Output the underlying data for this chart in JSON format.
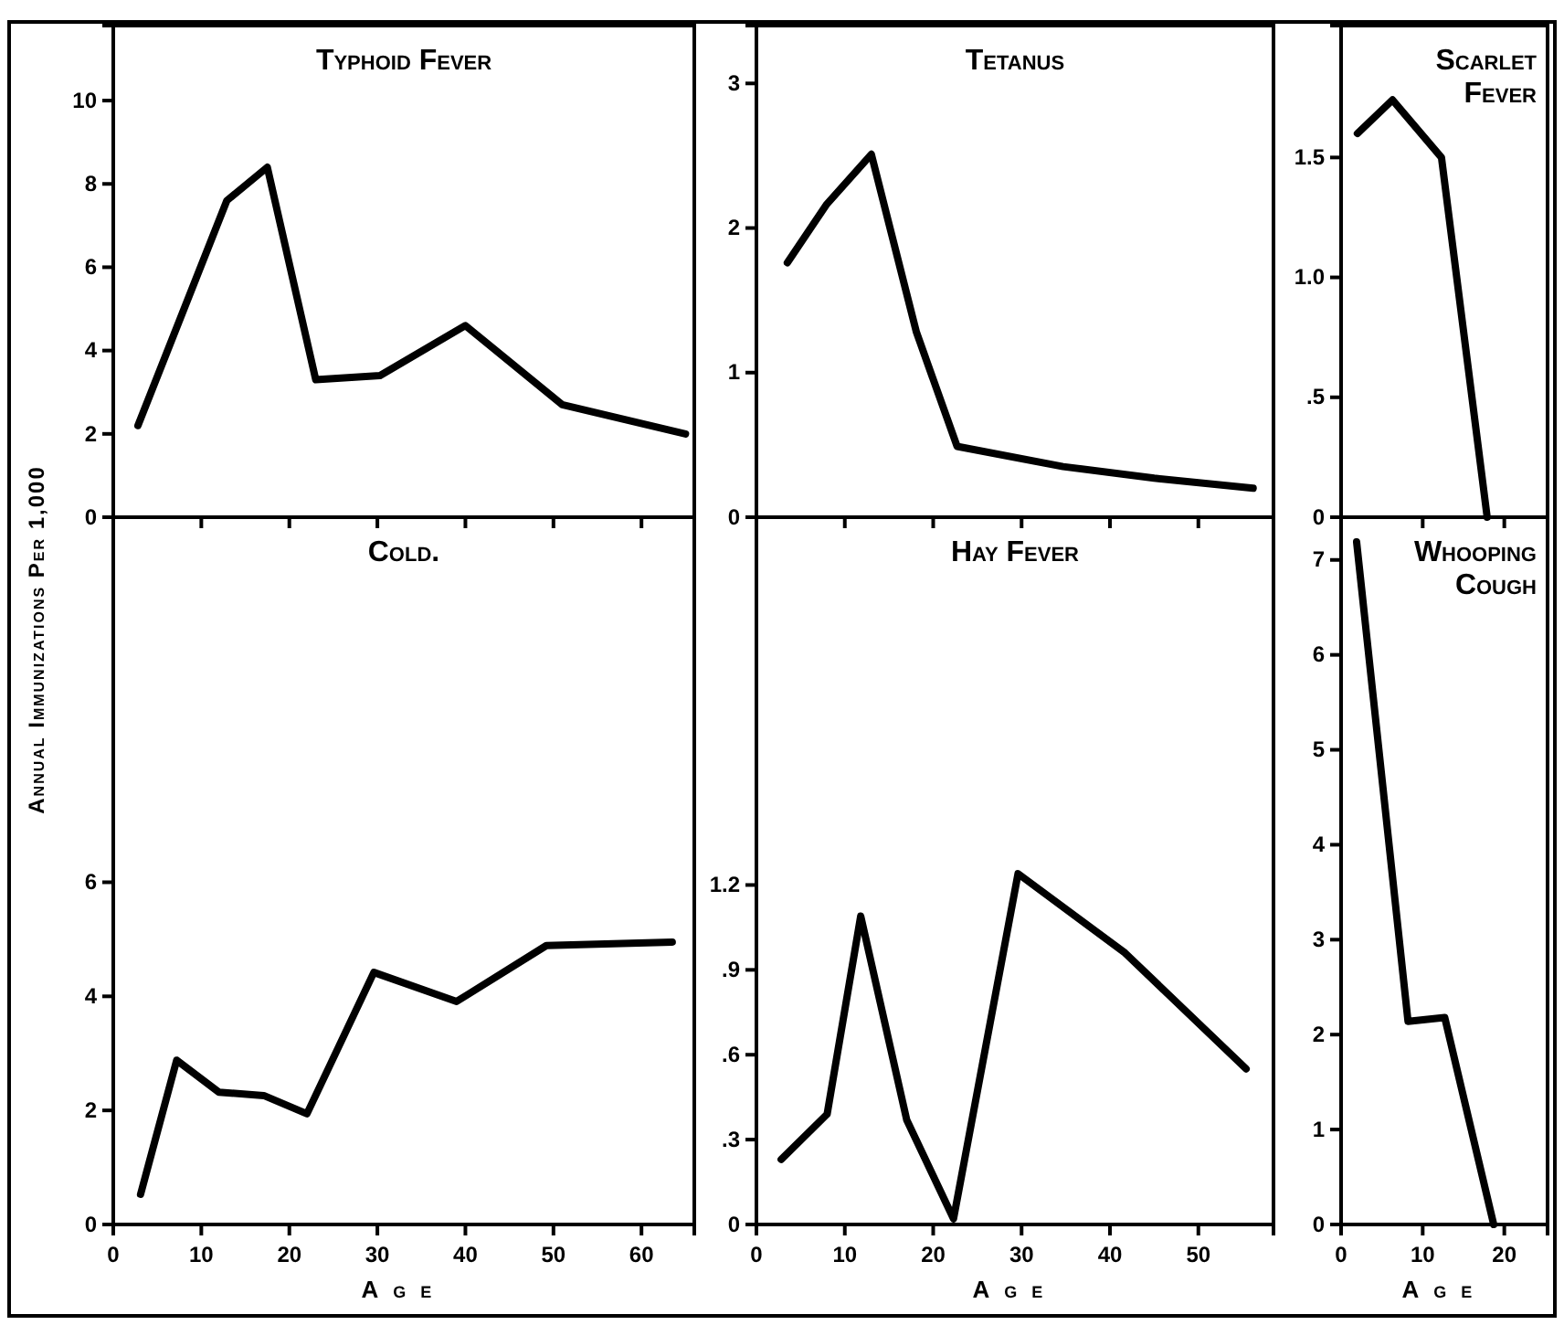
{
  "chart_data": [
    {
      "type": "line",
      "title": "Typhoid Fever",
      "x": [
        2.8,
        12.9,
        17.5,
        23,
        30.3,
        40,
        51,
        65
      ],
      "xlim": [
        0,
        66
      ],
      "xticks": [
        {
          "value": 0,
          "label": null
        },
        {
          "value": 10,
          "label": null
        },
        {
          "value": 20,
          "label": null
        },
        {
          "value": 30,
          "label": null
        },
        {
          "value": 40,
          "label": null
        },
        {
          "value": 50,
          "label": null
        },
        {
          "value": 60,
          "label": null
        }
      ],
      "ylim": [
        0,
        11.8
      ],
      "yticks": [
        0,
        2,
        4,
        6,
        8,
        10
      ],
      "tick_labels": "y",
      "series": [
        {
          "color": "#000000",
          "values": [
            2.2,
            7.6,
            8.4,
            3.3,
            3.4,
            4.6,
            2.7,
            2.0
          ]
        }
      ]
    },
    {
      "type": "line",
      "title": "Tetanus",
      "x": [
        3.5,
        7.9,
        13,
        18.1,
        22.7,
        34.7,
        45,
        56.2
      ],
      "xlim": [
        0,
        58.5
      ],
      "xticks": [
        {
          "value": 0,
          "label": null
        },
        {
          "value": 10,
          "label": null
        },
        {
          "value": 20,
          "label": null
        },
        {
          "value": 30,
          "label": null
        },
        {
          "value": 40,
          "label": null
        },
        {
          "value": 50,
          "label": null
        }
      ],
      "ylim": [
        0,
        3.4
      ],
      "yticks": [
        0,
        1,
        2,
        3
      ],
      "tick_labels": "y",
      "series": [
        {
          "color": "#000000",
          "values": [
            1.76,
            2.16,
            2.51,
            1.28,
            0.49,
            0.35,
            0.27,
            0.2
          ]
        }
      ]
    },
    {
      "type": "line",
      "title": "Scarlet Fever",
      "x": [
        2,
        6.3,
        12.3,
        17.9
      ],
      "xlim": [
        0,
        25.3
      ],
      "xticks": [
        {
          "value": 0,
          "label": null
        },
        {
          "value": 10,
          "label": null
        },
        {
          "value": 20,
          "label": null
        }
      ],
      "ylim": [
        0,
        2.05
      ],
      "yticks": [
        0,
        {
          "value": 0.5,
          "label": ".5"
        },
        {
          "value": 1,
          "label": "1.0"
        },
        1.5
      ],
      "tick_labels": "y",
      "series": [
        {
          "color": "#000000",
          "values": [
            1.6,
            1.74,
            1.5,
            0
          ]
        }
      ]
    },
    {
      "type": "line",
      "title": "Cold.",
      "xlabel": "Age",
      "ylabel": "Annual Immunizations Per 1,000",
      "x": [
        3.1,
        7.2,
        12,
        17.1,
        22,
        29.6,
        39,
        49.2,
        63.5
      ],
      "xlim": [
        0,
        66
      ],
      "xticks": [
        0,
        10,
        20,
        30,
        40,
        50,
        60
      ],
      "ylim": [
        0,
        12.4
      ],
      "yticks": [
        0,
        2,
        4,
        6
      ],
      "series": [
        {
          "color": "#000000",
          "values": [
            0.53,
            2.88,
            2.32,
            2.26,
            1.94,
            4.42,
            3.91,
            4.89,
            4.95
          ]
        }
      ]
    },
    {
      "type": "line",
      "title": "Hay Fever",
      "xlabel": "Age",
      "x": [
        2.8,
        8,
        11.8,
        17,
        22.3,
        29.6,
        41.7,
        55.4
      ],
      "xlim": [
        0,
        58.5
      ],
      "xticks": [
        0,
        10,
        20,
        30,
        40,
        50
      ],
      "ylim": [
        0,
        2.5
      ],
      "yticks": [
        0,
        {
          "value": 0.3,
          "label": ".3"
        },
        {
          "value": 0.6,
          "label": ".6"
        },
        {
          "value": 0.9,
          "label": ".9"
        },
        1.2
      ],
      "series": [
        {
          "color": "#000000",
          "values": [
            0.23,
            0.39,
            1.09,
            0.37,
            0.02,
            1.24,
            0.96,
            0.55
          ]
        }
      ]
    },
    {
      "type": "line",
      "title": "Whooping Cough",
      "xlabel": "Age",
      "x": [
        1.9,
        8.2,
        12.7,
        18.7
      ],
      "xlim": [
        0,
        25.3
      ],
      "xticks": [
        0,
        10,
        20
      ],
      "ylim": [
        0,
        7.45
      ],
      "yticks": [
        0,
        1,
        2,
        3,
        4,
        5,
        6,
        7
      ],
      "series": [
        {
          "color": "#000000",
          "values": [
            7.19,
            2.14,
            2.18,
            0
          ]
        }
      ]
    }
  ]
}
